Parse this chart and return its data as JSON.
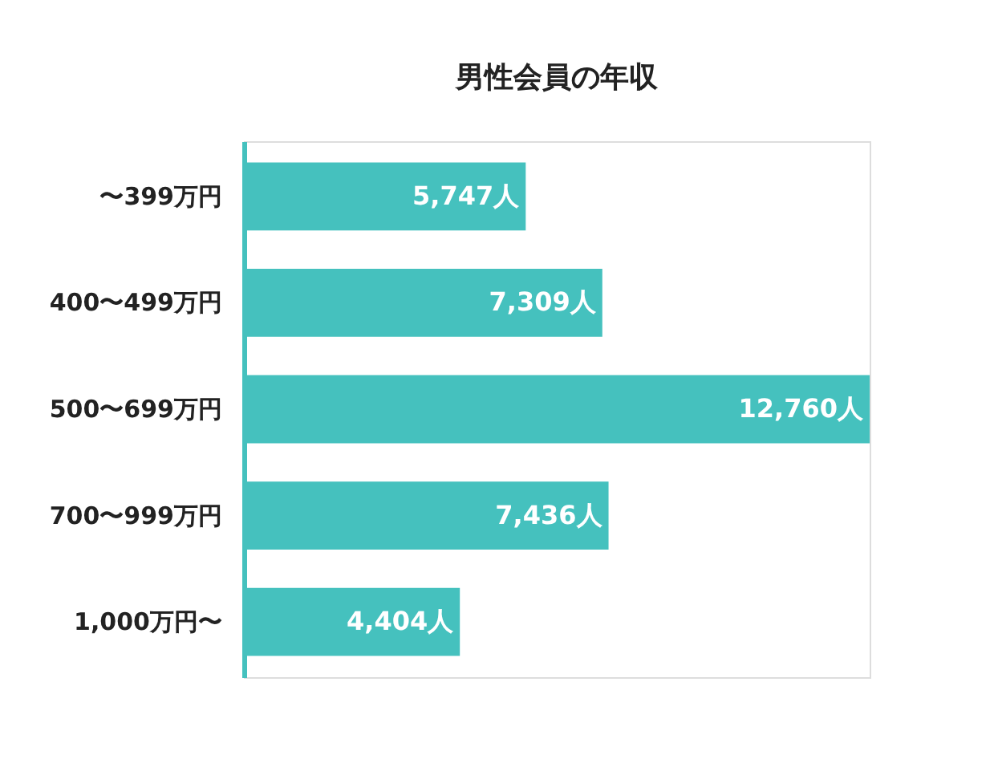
{
  "chart_data": {
    "type": "bar",
    "orientation": "horizontal",
    "title": "男性会員の年収",
    "categories": [
      "〜399万円",
      "400〜499万円",
      "500〜699万円",
      "700〜999万円",
      "1,000万円〜"
    ],
    "values": [
      5747,
      7309,
      12760,
      7436,
      4404
    ],
    "value_labels": [
      "5,747人",
      "7,309人",
      "12,760人",
      "7,436人",
      "4,404人"
    ],
    "color": "#45c1be"
  }
}
